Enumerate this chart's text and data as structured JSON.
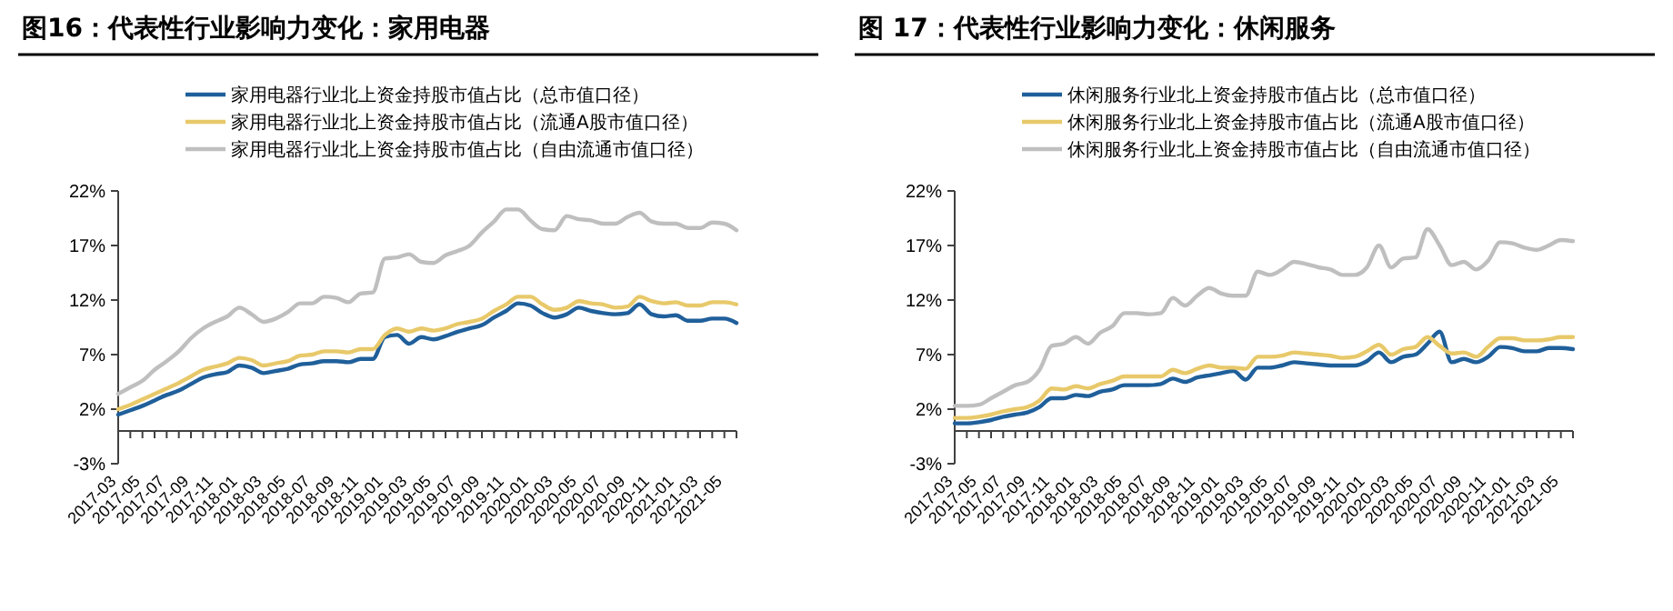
{
  "chart_data": [
    {
      "type": "line",
      "title": "图16：代表性行业影响力变化：家用电器",
      "legend": "top",
      "grid": false,
      "ylim": [
        -3,
        22
      ],
      "yticks": [
        {
          "value": -3,
          "label": "-3%"
        },
        {
          "value": 2,
          "label": "2%"
        },
        {
          "value": 7,
          "label": "7%"
        },
        {
          "value": 12,
          "label": "12%"
        },
        {
          "value": 17,
          "label": "17%"
        },
        {
          "value": 22,
          "label": "22%"
        }
      ],
      "categories": [
        "2017-03",
        null,
        "2017-05",
        null,
        "2017-07",
        null,
        "2017-09",
        null,
        "2017-11",
        null,
        "2018-01",
        null,
        "2018-03",
        null,
        "2018-05",
        null,
        "2018-07",
        null,
        "2018-09",
        null,
        "2018-11",
        null,
        "2019-01",
        null,
        "2019-03",
        null,
        "2019-05",
        null,
        "2019-07",
        null,
        "2019-09",
        null,
        "2019-11",
        null,
        "2020-01",
        null,
        "2020-03",
        null,
        "2020-05",
        null,
        "2020-07",
        null,
        "2020-09",
        null,
        "2020-11",
        null,
        "2021-01",
        null,
        "2021-03",
        null,
        "2021-05",
        null
      ],
      "series": [
        {
          "name": "家用电器行业北上资金持股市值占比（总市值口径）",
          "color": "#1f5f9a",
          "values": [
            1.5,
            1.9,
            2.3,
            2.8,
            3.3,
            3.7,
            4.3,
            4.9,
            5.2,
            5.4,
            6.0,
            5.8,
            5.3,
            5.5,
            5.7,
            6.1,
            6.2,
            6.4,
            6.4,
            6.3,
            6.6,
            6.6,
            8.6,
            8.8,
            8.0,
            8.6,
            8.4,
            8.7,
            9.1,
            9.4,
            9.7,
            10.4,
            11.0,
            11.7,
            11.5,
            10.8,
            10.4,
            10.7,
            11.3,
            11.0,
            10.8,
            10.7,
            10.8,
            11.6,
            10.7,
            10.5,
            10.6,
            10.1,
            10.1,
            10.3,
            10.3,
            9.9
          ]
        },
        {
          "name": "家用电器行业北上资金持股市值占比（流通A股市值口径）",
          "color": "#e8c96a",
          "values": [
            2.0,
            2.4,
            2.9,
            3.4,
            3.9,
            4.4,
            5.0,
            5.6,
            5.9,
            6.2,
            6.7,
            6.5,
            6.0,
            6.2,
            6.4,
            6.9,
            7.0,
            7.3,
            7.3,
            7.2,
            7.5,
            7.5,
            8.8,
            9.4,
            9.1,
            9.4,
            9.2,
            9.4,
            9.8,
            10.0,
            10.3,
            11.0,
            11.6,
            12.3,
            12.3,
            11.6,
            11.1,
            11.3,
            11.9,
            11.7,
            11.6,
            11.3,
            11.4,
            12.3,
            11.9,
            11.7,
            11.8,
            11.5,
            11.5,
            11.8,
            11.8,
            11.6
          ]
        },
        {
          "name": "家用电器行业北上资金持股市值占比（自由流通市值口径）",
          "color": "#bfbfbf",
          "values": [
            3.4,
            4.0,
            4.6,
            5.6,
            6.4,
            7.3,
            8.5,
            9.4,
            10.0,
            10.5,
            11.3,
            10.7,
            10.0,
            10.3,
            10.9,
            11.7,
            11.7,
            12.3,
            12.2,
            11.8,
            12.6,
            12.7,
            15.8,
            15.9,
            16.2,
            15.5,
            15.4,
            16.1,
            16.5,
            17.0,
            18.2,
            19.2,
            20.3,
            20.3,
            19.3,
            18.5,
            18.4,
            19.7,
            19.4,
            19.3,
            19.0,
            19.0,
            19.6,
            20.0,
            19.2,
            19.0,
            19.0,
            18.6,
            18.6,
            19.1,
            19.0,
            18.4
          ]
        }
      ]
    },
    {
      "type": "line",
      "title": "图 17：代表性行业影响力变化：休闲服务",
      "legend": "top",
      "grid": false,
      "ylim": [
        -3,
        22
      ],
      "yticks": [
        {
          "value": -3,
          "label": "-3%"
        },
        {
          "value": 2,
          "label": "2%"
        },
        {
          "value": 7,
          "label": "7%"
        },
        {
          "value": 12,
          "label": "12%"
        },
        {
          "value": 17,
          "label": "17%"
        },
        {
          "value": 22,
          "label": "22%"
        }
      ],
      "categories": [
        "2017-03",
        null,
        "2017-05",
        null,
        "2017-07",
        null,
        "2017-09",
        null,
        "2017-11",
        null,
        "2018-01",
        null,
        "2018-03",
        null,
        "2018-05",
        null,
        "2018-07",
        null,
        "2018-09",
        null,
        "2018-11",
        null,
        "2019-01",
        null,
        "2019-03",
        null,
        "2019-05",
        null,
        "2019-07",
        null,
        "2019-09",
        null,
        "2019-11",
        null,
        "2020-01",
        null,
        "2020-03",
        null,
        "2020-05",
        null,
        "2020-07",
        null,
        "2020-09",
        null,
        "2020-11",
        null,
        "2021-01",
        null,
        "2021-03",
        null,
        "2021-05",
        null
      ],
      "series": [
        {
          "name": "休闲服务行业北上资金持股市值占比（总市值口径）",
          "color": "#1f5f9a",
          "values": [
            0.7,
            0.7,
            0.8,
            1.0,
            1.3,
            1.5,
            1.7,
            2.2,
            3.0,
            3.0,
            3.3,
            3.2,
            3.6,
            3.8,
            4.2,
            4.2,
            4.2,
            4.3,
            4.8,
            4.5,
            4.9,
            5.1,
            5.3,
            5.5,
            4.7,
            5.8,
            5.8,
            6.0,
            6.3,
            6.2,
            6.1,
            6.0,
            6.0,
            6.0,
            6.4,
            7.2,
            6.3,
            6.8,
            7.0,
            8.0,
            9.1,
            6.3,
            6.6,
            6.3,
            6.8,
            7.7,
            7.6,
            7.3,
            7.3,
            7.6,
            7.6,
            7.5
          ]
        },
        {
          "name": "休闲服务行业北上资金持股市值占比（流通A股市值口径）",
          "color": "#e8c96a",
          "values": [
            1.2,
            1.2,
            1.3,
            1.5,
            1.8,
            2.0,
            2.2,
            2.8,
            3.9,
            3.8,
            4.1,
            3.9,
            4.3,
            4.6,
            5.0,
            5.0,
            5.0,
            5.0,
            5.6,
            5.3,
            5.7,
            6.0,
            5.8,
            5.8,
            5.7,
            6.8,
            6.8,
            6.9,
            7.2,
            7.1,
            7.0,
            6.9,
            6.7,
            6.8,
            7.3,
            7.9,
            7.0,
            7.5,
            7.7,
            8.6,
            7.8,
            7.1,
            7.2,
            6.8,
            7.7,
            8.5,
            8.5,
            8.3,
            8.3,
            8.4,
            8.6,
            8.6
          ]
        },
        {
          "name": "休闲服务行业北上资金持股市值占比（自由流通市值口径）",
          "color": "#bfbfbf",
          "values": [
            2.3,
            2.3,
            2.4,
            3.0,
            3.6,
            4.2,
            4.5,
            5.6,
            7.8,
            8.0,
            8.6,
            8.0,
            9.0,
            9.6,
            10.8,
            10.8,
            10.7,
            10.8,
            12.2,
            11.5,
            12.4,
            13.1,
            12.6,
            12.4,
            12.4,
            14.6,
            14.3,
            14.8,
            15.5,
            15.3,
            15.0,
            14.8,
            14.3,
            14.3,
            15.0,
            17.0,
            15.0,
            15.8,
            15.9,
            18.5,
            17.0,
            15.2,
            15.5,
            14.8,
            15.6,
            17.3,
            17.2,
            16.8,
            16.6,
            17.0,
            17.5,
            17.4
          ]
        }
      ]
    }
  ]
}
